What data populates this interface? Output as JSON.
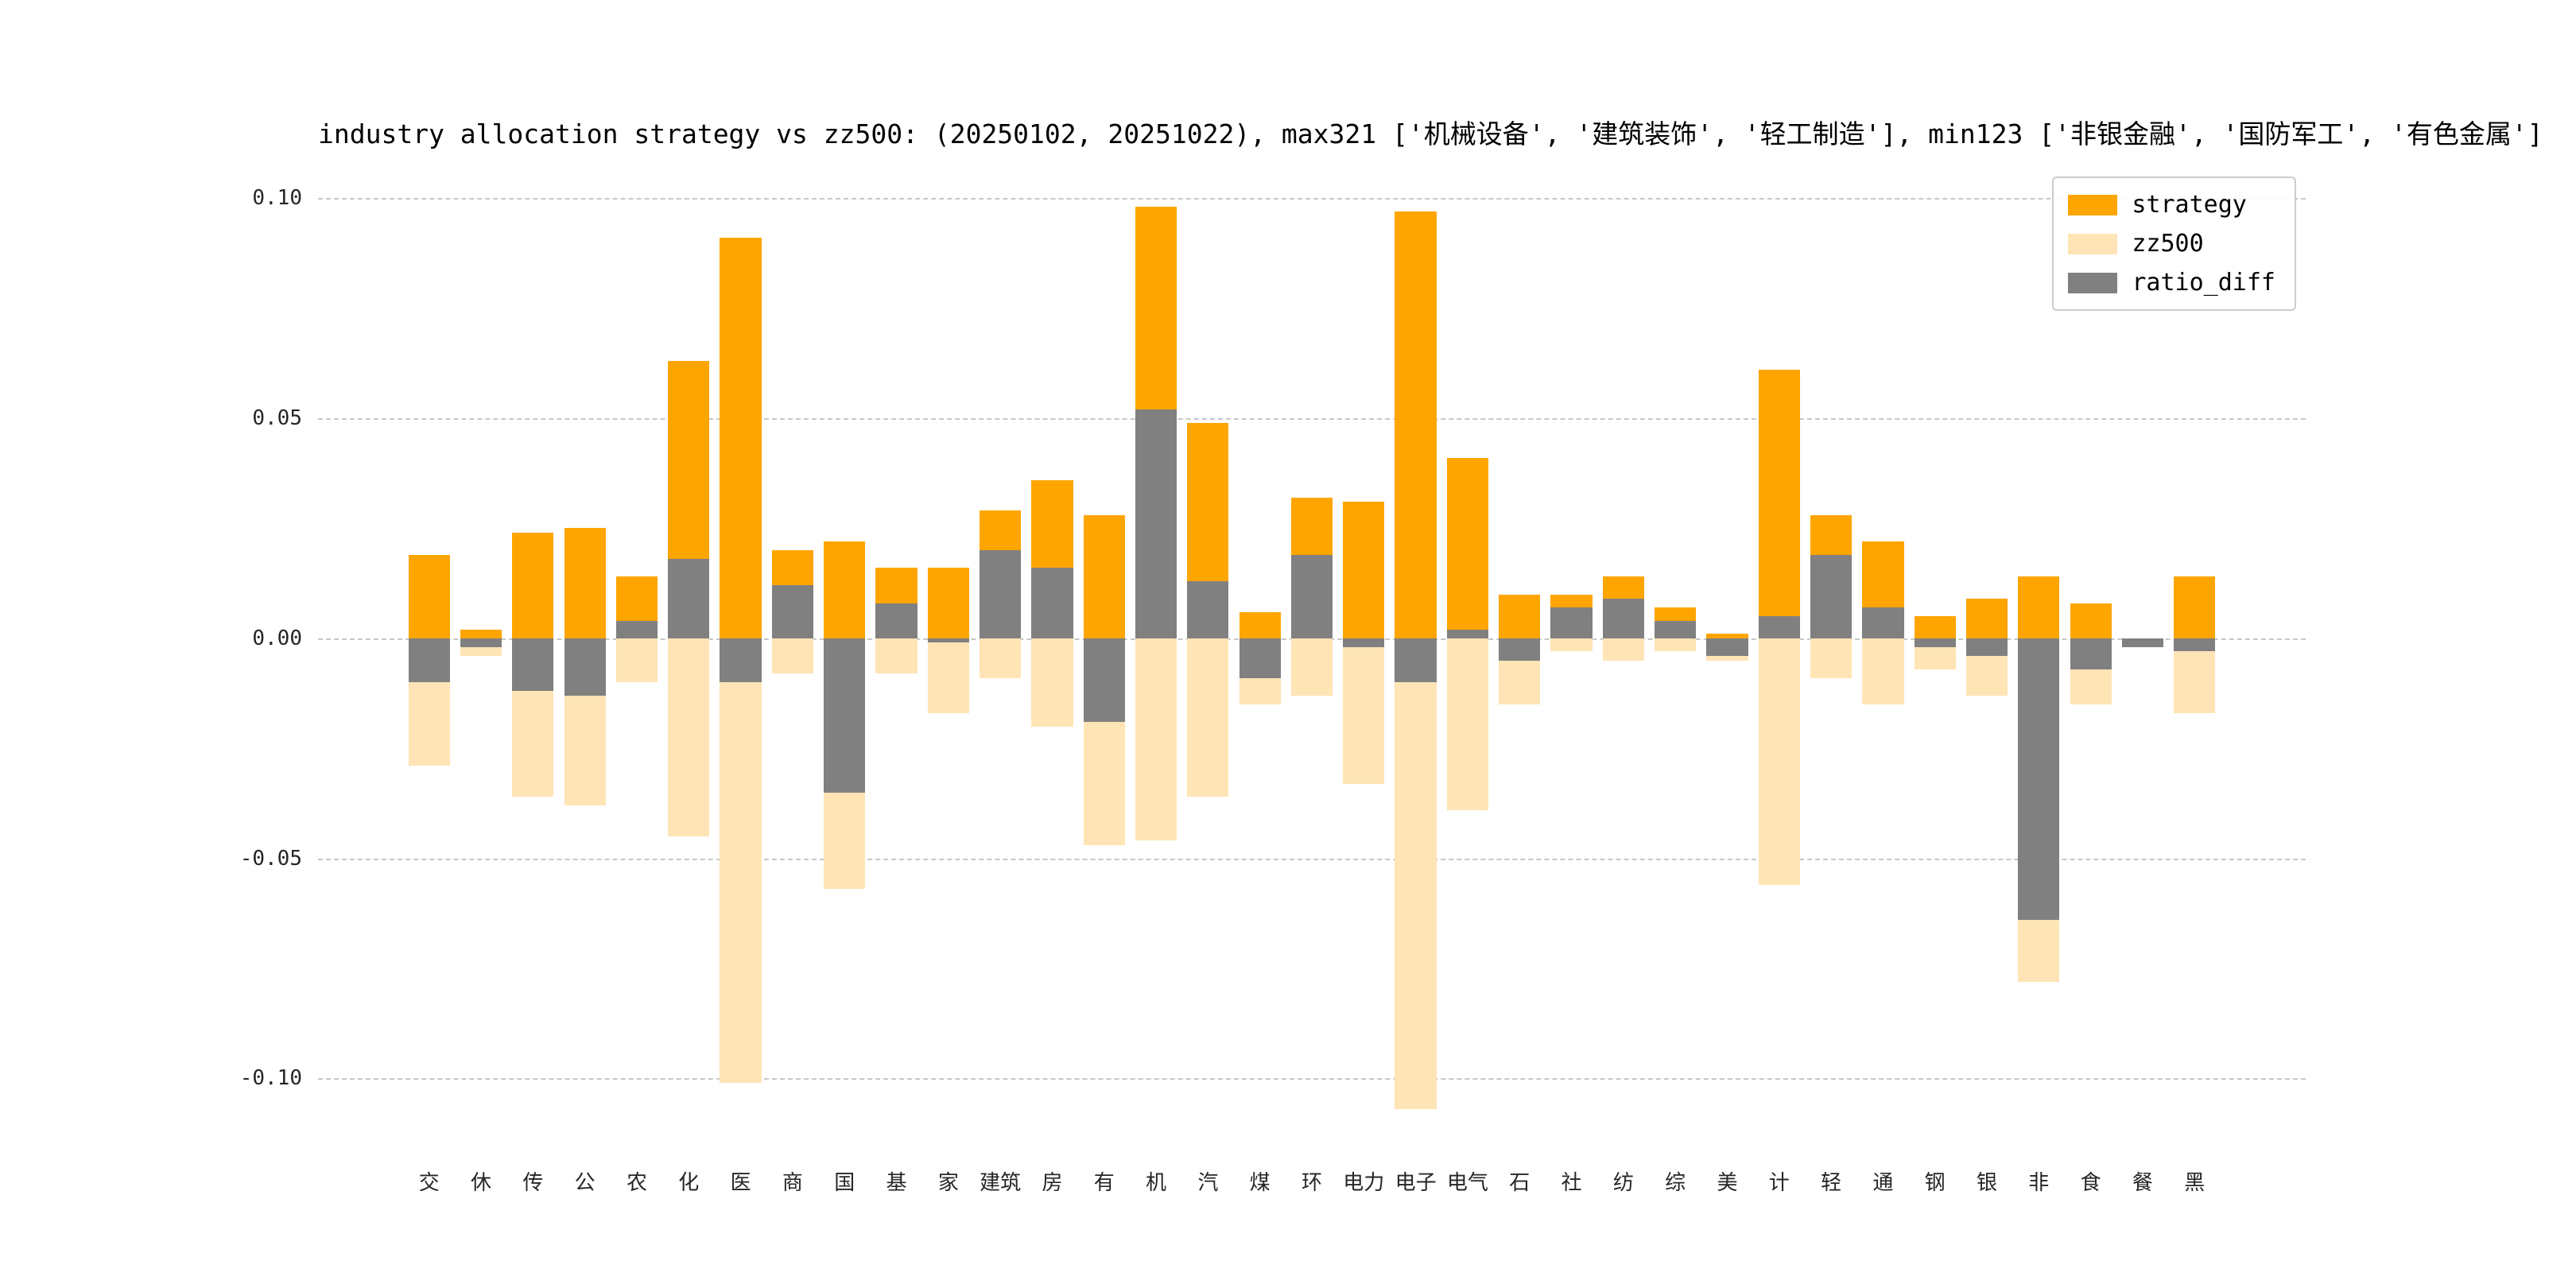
{
  "title": "industry allocation strategy vs zz500: (20250102, 20251022), max321 ['机械设备', '建筑装饰', '轻工制造'], min123 ['非银金融', '国防军工', '有色金属']",
  "legend": {
    "items": [
      {
        "label": "strategy",
        "color": "#FFA500"
      },
      {
        "label": "zz500",
        "color": "#FFE4B5"
      },
      {
        "label": "ratio_diff",
        "color": "#808080"
      }
    ]
  },
  "colors": {
    "strategy": "#FFA500",
    "zz500": "#FFE4B5",
    "ratio_diff": "#808080",
    "grid": "#c8c8c8",
    "background": "#ffffff"
  },
  "chart_data": {
    "type": "bar",
    "title": "industry allocation strategy vs zz500: (20250102, 20251022), max321 ['机械设备', '建筑装饰', '轻工制造'], min123 ['非银金融', '国防军工', '有色金属']",
    "categories": [
      "交",
      "休",
      "传",
      "公",
      "农",
      "化",
      "医",
      "商",
      "国",
      "基",
      "家",
      "建筑",
      "房",
      "有",
      "机",
      "汽",
      "煤",
      "环",
      "电力",
      "电子",
      "电气",
      "石",
      "社",
      "纺",
      "综",
      "美",
      "计",
      "轻",
      "通",
      "钢",
      "银",
      "非",
      "食",
      "餐",
      "黑"
    ],
    "series": [
      {
        "name": "strategy",
        "color": "#FFA500",
        "values": [
          0.019,
          0.002,
          0.024,
          0.025,
          0.014,
          0.063,
          0.091,
          0.02,
          0.022,
          0.016,
          0.016,
          0.029,
          0.036,
          0.028,
          0.098,
          0.049,
          0.006,
          0.032,
          0.031,
          0.097,
          0.041,
          0.01,
          0.01,
          0.014,
          0.007,
          0.001,
          0.061,
          0.028,
          0.022,
          0.005,
          0.009,
          0.014,
          0.008,
          0.0,
          0.014
        ]
      },
      {
        "name": "zz500",
        "color": "#FFE4B5",
        "values": [
          -0.029,
          -0.004,
          -0.036,
          -0.038,
          -0.01,
          -0.045,
          -0.101,
          -0.008,
          -0.057,
          -0.008,
          -0.017,
          -0.009,
          -0.02,
          -0.047,
          -0.046,
          -0.036,
          -0.015,
          -0.013,
          -0.033,
          -0.107,
          -0.039,
          -0.015,
          -0.003,
          -0.005,
          -0.003,
          -0.005,
          -0.056,
          -0.009,
          -0.015,
          -0.007,
          -0.013,
          -0.078,
          -0.015,
          -0.002,
          -0.017
        ]
      },
      {
        "name": "ratio_diff",
        "color": "#808080",
        "values": [
          -0.01,
          -0.002,
          -0.012,
          -0.013,
          0.004,
          0.018,
          -0.01,
          0.012,
          -0.035,
          0.008,
          -0.001,
          0.02,
          0.016,
          -0.019,
          0.052,
          0.013,
          -0.009,
          0.019,
          -0.002,
          -0.01,
          0.002,
          -0.005,
          0.007,
          0.009,
          0.004,
          -0.004,
          0.005,
          0.019,
          0.007,
          -0.002,
          -0.004,
          -0.064,
          -0.007,
          -0.002,
          -0.003
        ]
      }
    ],
    "xlabel": "",
    "ylabel": "",
    "ylim": [
      -0.116,
      0.108
    ],
    "yticks": [
      0.1,
      0.05,
      0.0,
      -0.05,
      -0.1
    ],
    "ytick_labels": [
      "0.10",
      "0.05",
      "0.00",
      "-0.05",
      "-0.10"
    ],
    "grid": "horizontal dashed",
    "legend_position": "upper right",
    "bar_mode": "overlaid same-x, draw order: strategy, zz500, ratio_diff"
  }
}
